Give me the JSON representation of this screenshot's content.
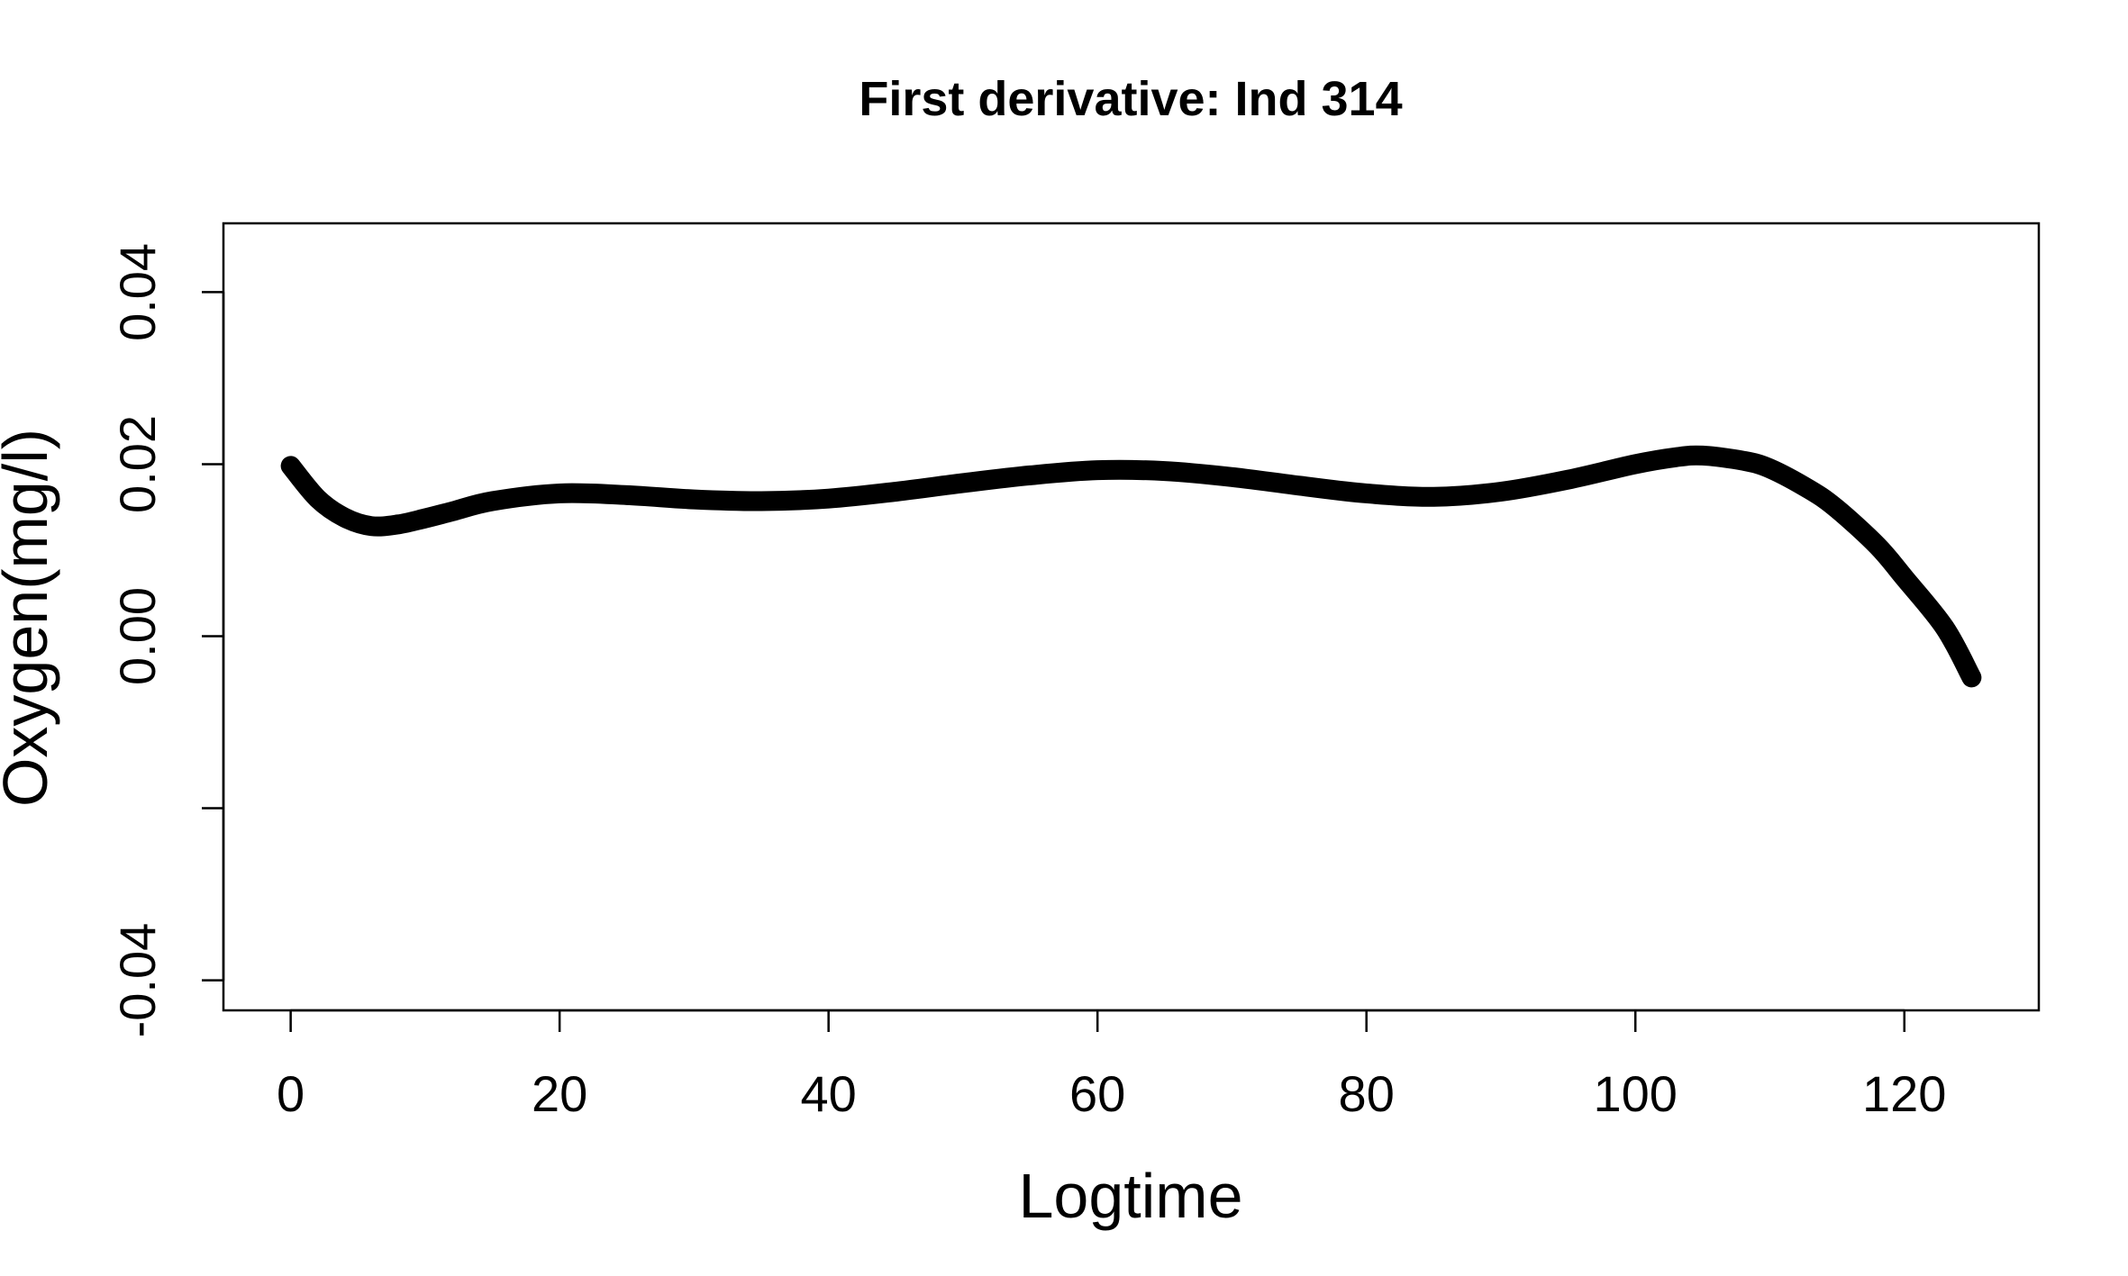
{
  "chart_data": {
    "type": "line",
    "title": "First derivative: Ind  314",
    "xlabel": "Logtime",
    "ylabel": "Oxygen(mg/l)",
    "xlim": [
      -5,
      130
    ],
    "ylim": [
      -0.0435,
      0.048
    ],
    "x_ticks": [
      0,
      20,
      40,
      60,
      80,
      100,
      120
    ],
    "x_tick_labels": [
      "0",
      "20",
      "40",
      "60",
      "80",
      "100",
      "120"
    ],
    "y_ticks": [
      -0.04,
      -0.02,
      0.0,
      0.02,
      0.04
    ],
    "y_tick_labels": [
      "-0.04",
      "",
      "0.00",
      "0.02",
      "0.04"
    ],
    "grid": false,
    "color": "#000000",
    "series": [
      {
        "x": [
          0,
          2,
          4,
          6,
          8,
          10,
          12,
          15,
          20,
          25,
          30,
          35,
          40,
          45,
          50,
          55,
          60,
          65,
          70,
          75,
          80,
          85,
          90,
          95,
          100,
          103,
          105,
          108,
          110,
          113,
          115,
          118,
          120,
          123,
          125
        ],
        "y": [
          0.0198,
          0.016,
          0.0138,
          0.0128,
          0.013,
          0.0137,
          0.0145,
          0.0157,
          0.0166,
          0.0164,
          0.0159,
          0.0157,
          0.016,
          0.0168,
          0.0178,
          0.0187,
          0.0193,
          0.0192,
          0.0185,
          0.0175,
          0.0166,
          0.0162,
          0.0168,
          0.0182,
          0.02,
          0.0208,
          0.021,
          0.0204,
          0.0195,
          0.017,
          0.0148,
          0.0105,
          0.0068,
          0.001,
          -0.0048
        ]
      }
    ]
  }
}
